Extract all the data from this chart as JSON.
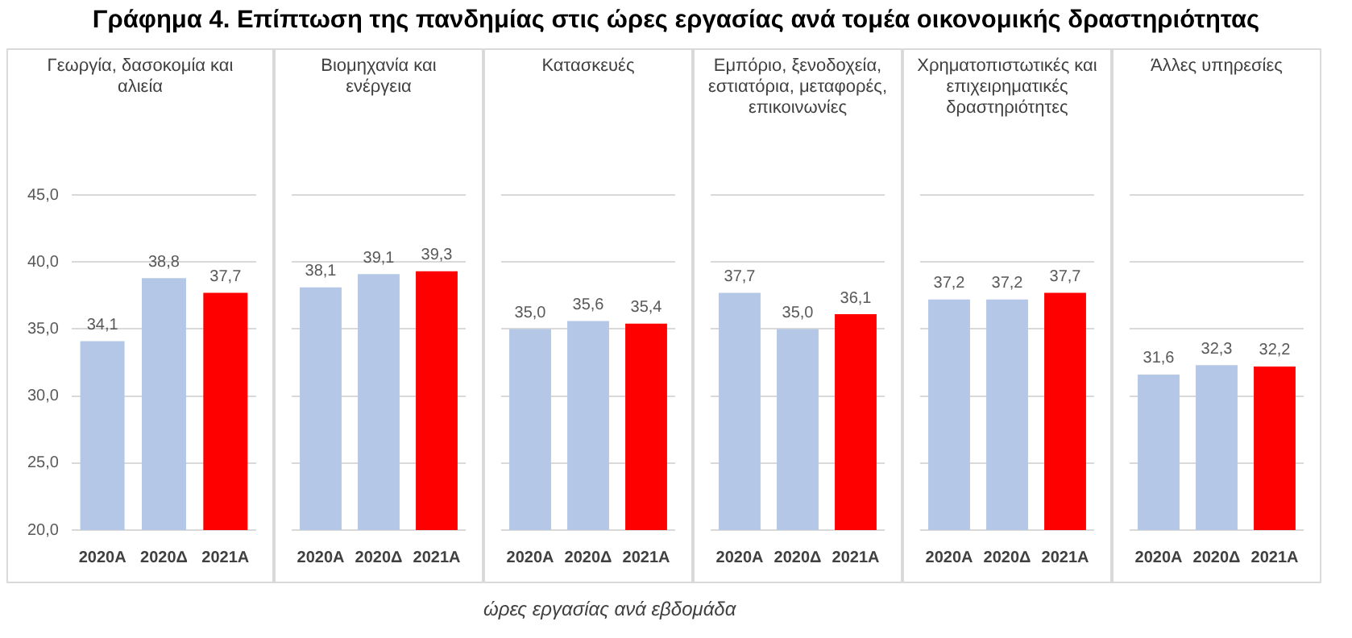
{
  "chart_data": [
    {
      "type": "bar",
      "title": "Γεωργία, δασοκομία και αλιεία",
      "annotations": [
        "Γράφημα 4. Επίπτωση της πανδημίας στις ώρες εργασίας ανά τομέα οικονομικής δραστηριότητας"
      ],
      "categories": [
        "2020Α",
        "2020Δ",
        "2021Α"
      ],
      "values": [
        34.1,
        38.8,
        37.7
      ],
      "colors": [
        "#b4c7e7",
        "#b4c7e7",
        "#ff0000"
      ],
      "value_labels": [
        "34,1",
        "38,8",
        "37,7"
      ],
      "ylim": [
        20,
        45
      ],
      "yticks": [
        {
          "value": 20,
          "label": "20,0"
        },
        {
          "value": 25,
          "label": "25,0"
        },
        {
          "value": 30,
          "label": "30,0"
        },
        {
          "value": 35,
          "label": "35,0"
        },
        {
          "value": 40,
          "label": "40,0"
        },
        {
          "value": 45,
          "label": "45,0"
        }
      ],
      "grid": "y",
      "legend": false
    },
    {
      "type": "bar",
      "title": "Βιομηχανία και ενέργεια",
      "categories": [
        "2020Α",
        "2020Δ",
        "2021Α"
      ],
      "values": [
        38.1,
        39.1,
        39.3
      ],
      "colors": [
        "#b4c7e7",
        "#b4c7e7",
        "#ff0000"
      ],
      "value_labels": [
        "38,1",
        "39,1",
        "39,3"
      ],
      "ylim": [
        20,
        45
      ],
      "yticks": [
        20,
        25,
        30,
        35,
        40,
        45
      ],
      "tick_labels": "x",
      "grid": "y",
      "legend": false
    },
    {
      "type": "bar",
      "title": "Κατασκευές",
      "annotations": [
        "ώρες  εργασίας ανά εβδομάδα"
      ],
      "categories": [
        "2020Α",
        "2020Δ",
        "2021Α"
      ],
      "values": [
        35.0,
        35.6,
        35.4
      ],
      "colors": [
        "#b4c7e7",
        "#b4c7e7",
        "#ff0000"
      ],
      "value_labels": [
        "35,0",
        "35,6",
        "35,4"
      ],
      "ylim": [
        20,
        45
      ],
      "yticks": [
        20,
        25,
        30,
        35,
        40,
        45
      ],
      "tick_labels": "x",
      "grid": "y",
      "legend": false
    },
    {
      "type": "bar",
      "title": "Εμπόριο, ξενοδοχεία, εστιατόρια, μεταφορές, επικοινωνίες",
      "categories": [
        "2020Α",
        "2020Δ",
        "2021Α"
      ],
      "values": [
        37.7,
        35.0,
        36.1
      ],
      "colors": [
        "#b4c7e7",
        "#b4c7e7",
        "#ff0000"
      ],
      "value_labels": [
        "37,7",
        "35,0",
        "36,1"
      ],
      "ylim": [
        20,
        45
      ],
      "yticks": [
        20,
        25,
        30,
        35,
        40,
        45
      ],
      "tick_labels": "x",
      "grid": "y",
      "legend": false
    },
    {
      "type": "bar",
      "title": "Χρηματοπιστωτικές και επιχειρηματικές δραστηριότητες",
      "categories": [
        "2020Α",
        "2020Δ",
        "2021Α"
      ],
      "values": [
        37.2,
        37.2,
        37.7
      ],
      "colors": [
        "#b4c7e7",
        "#b4c7e7",
        "#ff0000"
      ],
      "value_labels": [
        "37,2",
        "37,2",
        "37,7"
      ],
      "ylim": [
        20,
        45
      ],
      "yticks": [
        20,
        25,
        30,
        35,
        40,
        45
      ],
      "tick_labels": "x",
      "grid": "y",
      "legend": false
    },
    {
      "type": "bar",
      "title": "Άλλες υπηρεσίες",
      "categories": [
        "2020Α",
        "2020Δ",
        "2021Α"
      ],
      "values": [
        31.6,
        32.3,
        32.2
      ],
      "colors": [
        "#b4c7e7",
        "#b4c7e7",
        "#ff0000"
      ],
      "value_labels": [
        "31,6",
        "32,3",
        "32,2"
      ],
      "ylim": [
        20,
        45
      ],
      "yticks": [
        20,
        25,
        30,
        35,
        40,
        45
      ],
      "tick_labels": "x",
      "grid": "y",
      "legend": false
    }
  ]
}
